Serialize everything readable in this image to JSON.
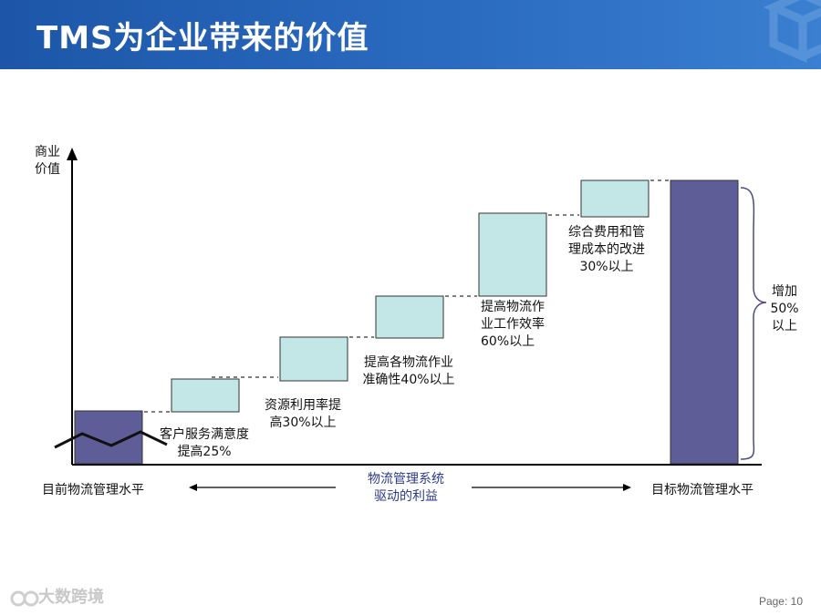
{
  "header": {
    "title": "TMS为企业带来的价值"
  },
  "diagram": {
    "y_axis_label": [
      "商业",
      "价值"
    ],
    "baseline_label": "目前物流管理水平",
    "target_label": "目标物流管理水平",
    "middle_label": [
      "物流管理系统",
      "驱动的利益"
    ],
    "steps": [
      {
        "lines": [
          "客户服务满意度",
          "提高25%"
        ]
      },
      {
        "lines": [
          "资源利用率提",
          "高30%以上"
        ]
      },
      {
        "lines": [
          "提高各物流作业",
          "准确性40%以上"
        ]
      },
      {
        "lines": [
          "提高物流作",
          "业工作效率",
          "60%以上"
        ]
      },
      {
        "lines": [
          "综合费用和管",
          "理成本的改进",
          "30%以上"
        ]
      }
    ],
    "increase_label": [
      "增加",
      "50%",
      "以上"
    ]
  },
  "footer": {
    "page": "Page: 10",
    "watermark": "大数跨境"
  },
  "colors": {
    "header": "#1d56a8",
    "step_fill": "#c3e6e6",
    "bar_fill": "#5e5d98"
  }
}
